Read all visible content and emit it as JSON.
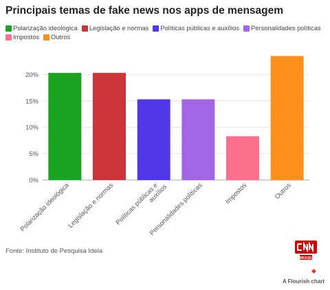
{
  "title": "Principais temas de fake news nos apps de mensagem",
  "source": "Fonte: Instituto de Pesquisa Ideia",
  "credit": "A Flourish chart",
  "logo": {
    "text": "CNN",
    "subtext": "BRASIL",
    "color": "#cc0000"
  },
  "chart_data": {
    "type": "bar",
    "categories": [
      "Polarização ideológica",
      "Legislação e normas",
      "Políticas públicas e auxílios",
      "Personalidades políticas",
      "Impostos",
      "Outros"
    ],
    "values": [
      20.3,
      20.3,
      15.3,
      15.3,
      8.3,
      23.5
    ],
    "colors": [
      "#1aa321",
      "#cb3439",
      "#5038e8",
      "#a165e6",
      "#ff6f8e",
      "#fd8f1a"
    ],
    "legend": [
      {
        "label": "Polarização ideológica",
        "color": "#1aa321"
      },
      {
        "label": "Legislação e normas",
        "color": "#cb3439"
      },
      {
        "label": "Políticas públicas e auxílios",
        "color": "#5038e8"
      },
      {
        "label": "Personalidades políticas",
        "color": "#a165e6"
      },
      {
        "label": "Impostos",
        "color": "#ff6f8e"
      },
      {
        "label": "Outros",
        "color": "#fd8f1a"
      }
    ],
    "tick_labels": [
      "0%",
      "5%",
      "10%",
      "15%",
      "20%"
    ],
    "yticks": [
      0,
      5,
      10,
      15,
      20
    ],
    "ylim": [
      0,
      25
    ],
    "grid": true,
    "legend_position": "top"
  }
}
